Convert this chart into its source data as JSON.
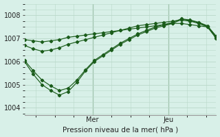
{
  "title": "Pression niveau de la mer( hPa )",
  "ylim": [
    1003.7,
    1008.5
  ],
  "yticks": [
    1004,
    1005,
    1006,
    1007,
    1008
  ],
  "background_color": "#d8f0e8",
  "grid_color": "#b8d8c8",
  "line_color": "#1a5c1a",
  "day_labels": [
    "Mer",
    "Jeu"
  ],
  "day_positions": [
    0.355,
    0.75
  ],
  "series": [
    [
      1006.95,
      1006.9,
      1006.85,
      1006.9,
      1006.95,
      1007.05,
      1007.1,
      1007.15,
      1007.2,
      1007.25,
      1007.3,
      1007.35,
      1007.4,
      1007.45,
      1007.5,
      1007.55,
      1007.6,
      1007.65,
      1007.65,
      1007.6,
      1007.55,
      1007.5,
      1007.0
    ],
    [
      1006.7,
      1006.55,
      1006.45,
      1006.5,
      1006.6,
      1006.75,
      1006.85,
      1006.95,
      1007.05,
      1007.15,
      1007.25,
      1007.35,
      1007.45,
      1007.55,
      1007.6,
      1007.65,
      1007.7,
      1007.75,
      1007.8,
      1007.75,
      1007.65,
      1007.5,
      1007.05
    ],
    [
      1006.05,
      1005.6,
      1005.2,
      1004.95,
      1004.75,
      1004.85,
      1005.2,
      1005.65,
      1006.05,
      1006.3,
      1006.55,
      1006.8,
      1007.0,
      1007.2,
      1007.35,
      1007.5,
      1007.6,
      1007.7,
      1007.85,
      1007.8,
      1007.7,
      1007.55,
      1007.1
    ],
    [
      1006.0,
      1005.45,
      1005.0,
      1004.75,
      1004.55,
      1004.7,
      1005.1,
      1005.6,
      1006.0,
      1006.25,
      1006.5,
      1006.75,
      1006.95,
      1007.15,
      1007.3,
      1007.45,
      1007.55,
      1007.65,
      1007.82,
      1007.78,
      1007.68,
      1007.52,
      1007.08
    ]
  ],
  "n_points": 23
}
